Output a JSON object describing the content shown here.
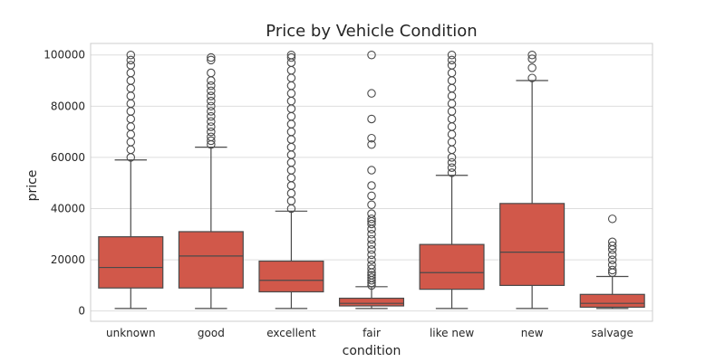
{
  "chart_data": {
    "type": "box",
    "title": "Price by Vehicle Condition",
    "xlabel": "condition",
    "ylabel": "price",
    "categories": [
      "unknown",
      "good",
      "excellent",
      "fair",
      "like new",
      "new",
      "salvage"
    ],
    "ylim": [
      -4000,
      104500
    ],
    "yticks": [
      0,
      20000,
      40000,
      60000,
      80000,
      100000
    ],
    "grid": "horizontal",
    "box_color": "#d1584a",
    "line_color": "#4a4a4a",
    "boxes": [
      {
        "category": "unknown",
        "whisker_low": 1000,
        "q1": 9000,
        "median": 17000,
        "q3": 29000,
        "whisker_high": 59000,
        "outliers": [
          60000,
          63000,
          66000,
          69000,
          72000,
          75000,
          78000,
          81000,
          84000,
          87000,
          90000,
          93000,
          96000,
          98000,
          100000
        ]
      },
      {
        "category": "good",
        "whisker_low": 1000,
        "q1": 9000,
        "median": 21500,
        "q3": 31000,
        "whisker_high": 64000,
        "outliers": [
          65000,
          66500,
          68000,
          70000,
          72000,
          74000,
          76000,
          78000,
          80000,
          82000,
          84000,
          86000,
          88000,
          90000,
          93000,
          98000,
          99000
        ]
      },
      {
        "category": "excellent",
        "whisker_low": 1000,
        "q1": 7500,
        "median": 12000,
        "q3": 19500,
        "whisker_high": 39000,
        "outliers": [
          40000,
          43000,
          46000,
          49000,
          52000,
          55000,
          58000,
          61000,
          64000,
          67000,
          70000,
          73000,
          76000,
          79000,
          82000,
          85000,
          88000,
          91000,
          94000,
          97000,
          99000,
          100000
        ]
      },
      {
        "category": "fair",
        "whisker_low": 1000,
        "q1": 2000,
        "median": 3000,
        "q3": 5000,
        "whisker_high": 9500,
        "outliers": [
          10000,
          11000,
          12000,
          13000,
          14000,
          15000,
          16500,
          18000,
          20000,
          22000,
          24000,
          26000,
          28000,
          30000,
          32000,
          34000,
          35000,
          36000,
          38000,
          41500,
          45000,
          49000,
          55000,
          65000,
          67500,
          75000,
          85000,
          100000
        ]
      },
      {
        "category": "like new",
        "whisker_low": 1000,
        "q1": 8500,
        "median": 15000,
        "q3": 26000,
        "whisker_high": 53000,
        "outliers": [
          54000,
          56000,
          58000,
          60000,
          63000,
          66000,
          69000,
          72000,
          75000,
          78000,
          81000,
          84000,
          87000,
          90000,
          93000,
          96000,
          98000,
          100000
        ]
      },
      {
        "category": "new",
        "whisker_low": 1000,
        "q1": 10000,
        "median": 23000,
        "q3": 42000,
        "whisker_high": 90000,
        "outliers": [
          91000,
          95000,
          98500,
          100000
        ]
      },
      {
        "category": "salvage",
        "whisker_low": 1000,
        "q1": 1500,
        "median": 3000,
        "q3": 6500,
        "whisker_high": 13500,
        "outliers": [
          15000,
          16000,
          18000,
          20000,
          22000,
          24000,
          25500,
          27000,
          36000
        ]
      }
    ]
  }
}
